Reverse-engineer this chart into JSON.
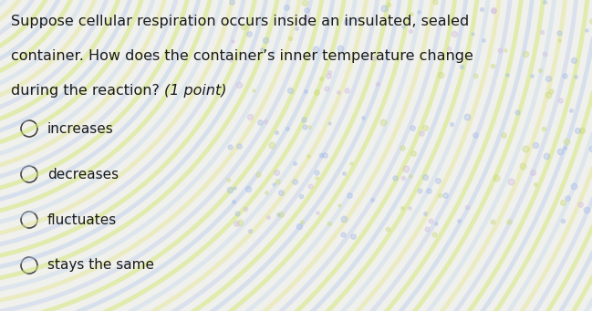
{
  "question_lines": [
    "Suppose cellular respiration occurs inside an insulated, sealed",
    "container. How does the container’s inner temperature change",
    "during the reaction?  (1 point)"
  ],
  "choices": [
    "increases",
    "decreases",
    "fluctuates",
    "stays the same"
  ],
  "bg_color": "#f0f0ec",
  "text_color": "#1a1a1a",
  "question_fontsize": 11.5,
  "choice_fontsize": 11.0,
  "circle_color": "#444444",
  "circle_linewidth": 1.2,
  "arc_colors_yellow": "#d8e870",
  "arc_colors_blue": "#b0c8f0",
  "arc_colors_pink": "#f0c8c8",
  "arc_colors_green": "#c8e8b0"
}
